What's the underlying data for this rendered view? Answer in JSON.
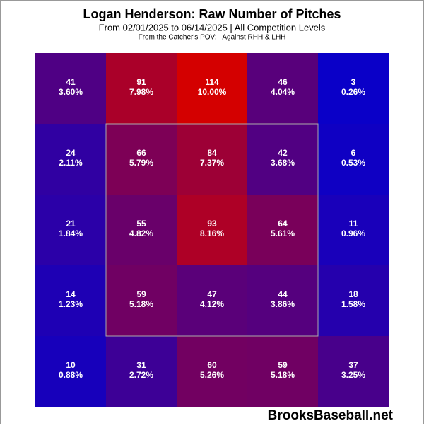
{
  "chart_data": {
    "type": "heatmap",
    "title": "Logan Henderson: Raw Number of Pitches",
    "subtitle": "From 02/01/2025 to 06/14/2025 | All Competition Levels",
    "note": "From the Catcher's POV:   Against RHH & LHH",
    "watermark": "BrooksBaseball.net",
    "colors": [
      "#0a00c8",
      "#d40000"
    ],
    "values": [
      [
        41,
        91,
        114,
        46,
        3
      ],
      [
        24,
        66,
        84,
        42,
        6
      ],
      [
        21,
        55,
        93,
        64,
        11
      ],
      [
        14,
        59,
        47,
        44,
        18
      ],
      [
        10,
        31,
        60,
        59,
        37
      ]
    ],
    "percents": [
      [
        3.6,
        7.98,
        10.0,
        4.04,
        0.26
      ],
      [
        2.11,
        5.79,
        7.37,
        3.68,
        0.53
      ],
      [
        1.84,
        4.82,
        8.16,
        5.61,
        0.96
      ],
      [
        1.23,
        5.18,
        4.12,
        3.86,
        1.58
      ],
      [
        0.88,
        2.72,
        5.26,
        5.18,
        3.25
      ]
    ],
    "percent_labels": [
      [
        "3.60%",
        "7.98%",
        "10.00%",
        "4.04%",
        "0.26%"
      ],
      [
        "2.11%",
        "5.79%",
        "7.37%",
        "3.68%",
        "0.53%"
      ],
      [
        "1.84%",
        "4.82%",
        "8.16%",
        "5.61%",
        "0.96%"
      ],
      [
        "1.23%",
        "5.18%",
        "4.12%",
        "3.86%",
        "1.58%"
      ],
      [
        "0.88%",
        "2.72%",
        "5.26%",
        "5.18%",
        "3.25%"
      ]
    ]
  }
}
